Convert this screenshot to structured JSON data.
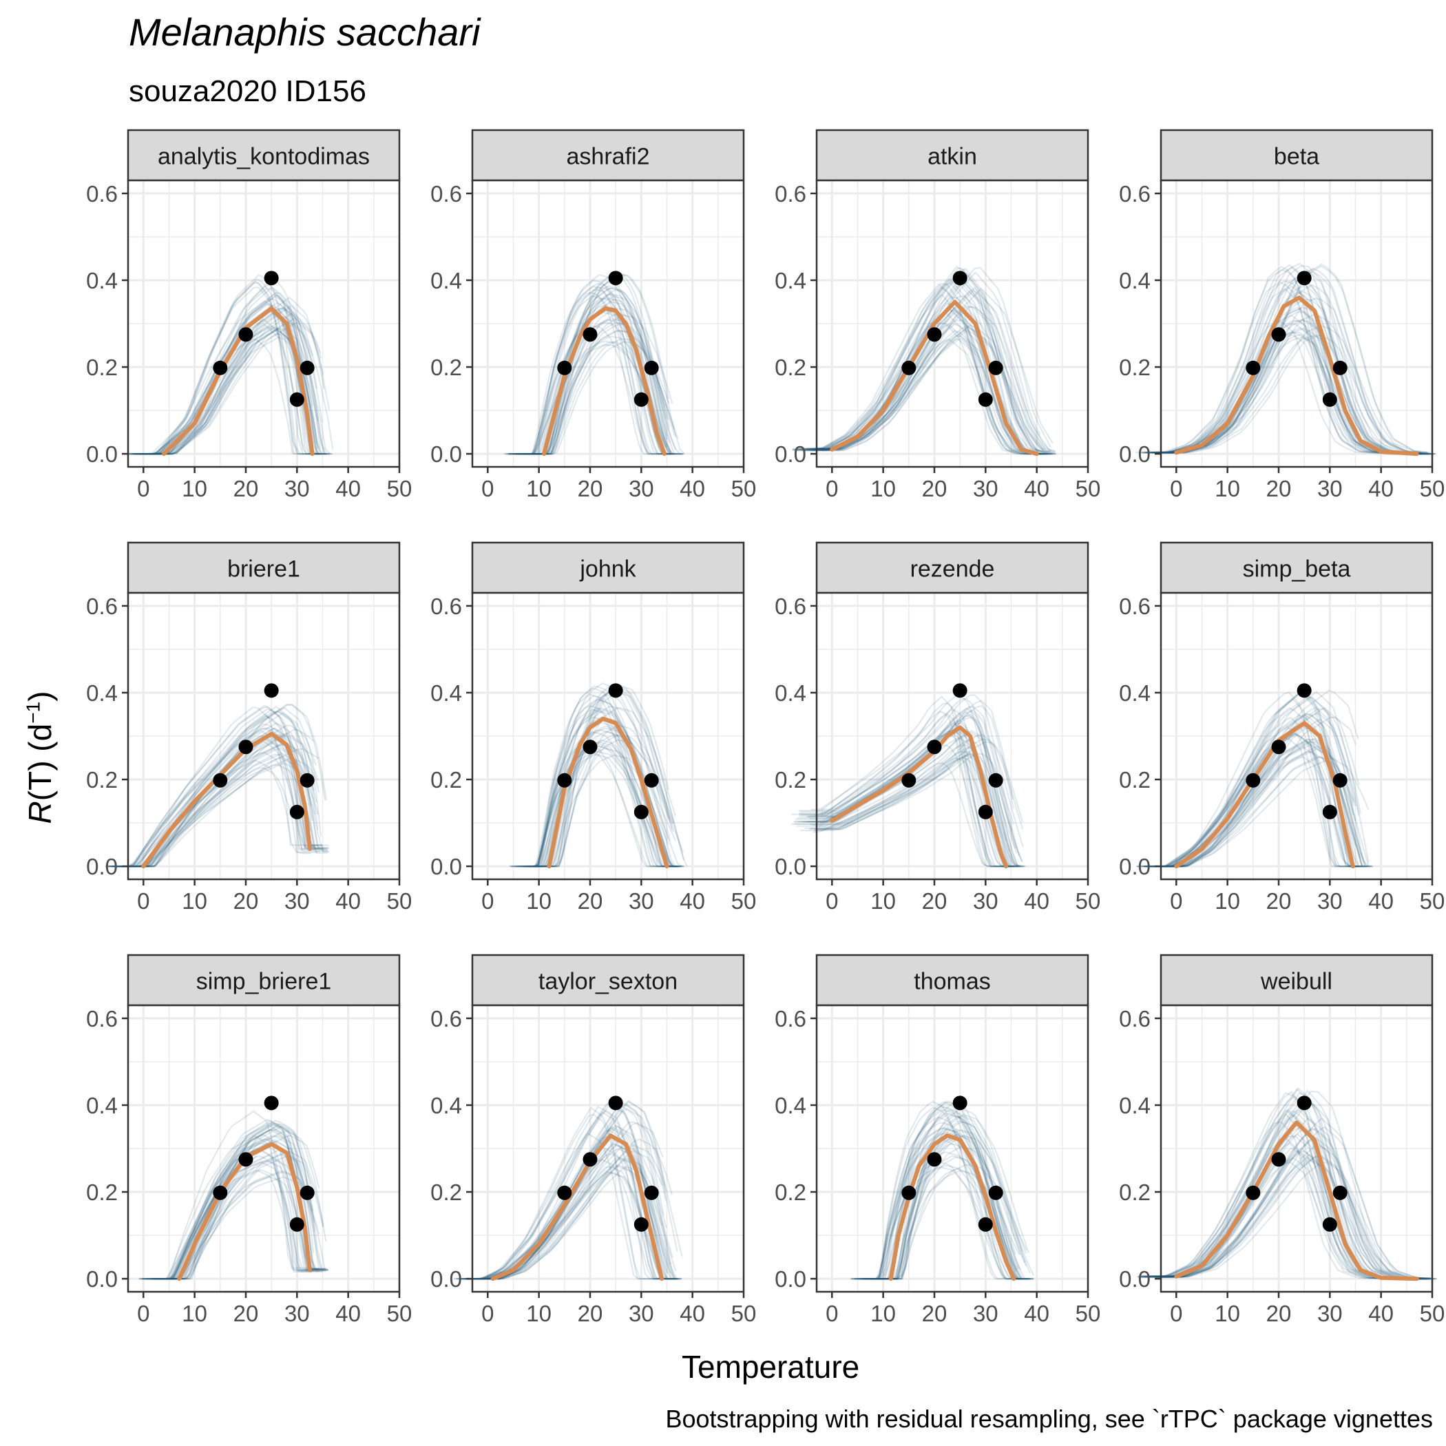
{
  "figure": {
    "title": "Melanaphis sacchari",
    "subtitle": "souza2020 ID156",
    "xlabel": "Temperature",
    "ylabel_symbol": "R",
    "ylabel_rest": "(T) (d",
    "ylabel_sup": "−1",
    "ylabel_close": ")",
    "caption": "Bootstrapping with residual resampling, see `rTPC` package vignettes"
  },
  "colors": {
    "fit_line": "#D98A4E",
    "bootstrap_lines": "#1F5672",
    "points": "#000000",
    "strip_background": "#D9D9D9",
    "panel_border": "#333333",
    "grid": "#EBEBEB"
  },
  "chart_data": {
    "type": "line",
    "facet_layout": {
      "rows": 3,
      "cols": 4
    },
    "x_ticks": [
      0,
      10,
      20,
      30,
      40,
      50
    ],
    "y_ticks": [
      0.0,
      0.2,
      0.4,
      0.6
    ],
    "y_tick_labels": [
      "0.0",
      "0.2",
      "0.4",
      "0.6"
    ],
    "xlim": [
      -3,
      50
    ],
    "ylim": [
      -0.03,
      0.63
    ],
    "grid": true,
    "observed_points": {
      "x": [
        15,
        20,
        25,
        30,
        32
      ],
      "y": [
        0.198,
        0.275,
        0.405,
        0.125,
        0.198
      ]
    },
    "panels": [
      {
        "model": "analytis_kontodimas",
        "fit": {
          "x": [
            4,
            10,
            15,
            20,
            25,
            28,
            30,
            32,
            33
          ],
          "y": [
            0.0,
            0.07,
            0.19,
            0.29,
            0.335,
            0.3,
            0.22,
            0.09,
            0.0
          ]
        }
      },
      {
        "model": "ashrafi2",
        "fit": {
          "x": [
            11,
            13,
            15,
            18,
            20,
            23,
            25,
            27,
            29,
            31,
            33,
            34.5
          ],
          "y": [
            0.0,
            0.09,
            0.18,
            0.27,
            0.31,
            0.335,
            0.33,
            0.3,
            0.24,
            0.15,
            0.05,
            0.0
          ]
        }
      },
      {
        "model": "atkin",
        "fit": {
          "x": [
            0,
            5,
            10,
            15,
            20,
            24,
            28,
            31,
            34,
            37,
            40
          ],
          "y": [
            0.01,
            0.04,
            0.1,
            0.2,
            0.3,
            0.35,
            0.3,
            0.19,
            0.07,
            0.01,
            0.0
          ]
        }
      },
      {
        "model": "beta",
        "fit": {
          "x": [
            0,
            5,
            10,
            15,
            18,
            21,
            24,
            27,
            30,
            33,
            36,
            40,
            47
          ],
          "y": [
            0.003,
            0.02,
            0.07,
            0.18,
            0.27,
            0.34,
            0.36,
            0.33,
            0.22,
            0.1,
            0.03,
            0.005,
            0.0
          ]
        }
      },
      {
        "model": "briere1",
        "fit": {
          "x": [
            0,
            5,
            10,
            15,
            20,
            25,
            28,
            30,
            31.5,
            32.5
          ],
          "y": [
            0.0,
            0.08,
            0.15,
            0.21,
            0.27,
            0.305,
            0.28,
            0.22,
            0.14,
            0.04
          ]
        }
      },
      {
        "model": "johnk",
        "fit": {
          "x": [
            12,
            13.5,
            15,
            18,
            20,
            22.5,
            25,
            28,
            30,
            32,
            34,
            35
          ],
          "y": [
            0.0,
            0.09,
            0.18,
            0.28,
            0.32,
            0.34,
            0.33,
            0.27,
            0.2,
            0.12,
            0.04,
            0.0
          ]
        }
      },
      {
        "model": "rezende",
        "fit": {
          "x": [
            0,
            5,
            10,
            15,
            20,
            22.5,
            25,
            27,
            29,
            31,
            33,
            34
          ],
          "y": [
            0.105,
            0.14,
            0.175,
            0.215,
            0.265,
            0.3,
            0.32,
            0.3,
            0.22,
            0.12,
            0.03,
            0.0
          ]
        }
      },
      {
        "model": "simp_beta",
        "fit": {
          "x": [
            0,
            5,
            10,
            15,
            20,
            25,
            28,
            31,
            33,
            34.5
          ],
          "y": [
            0.0,
            0.04,
            0.11,
            0.2,
            0.29,
            0.33,
            0.3,
            0.19,
            0.08,
            0.0
          ]
        }
      },
      {
        "model": "simp_briere1",
        "fit": {
          "x": [
            7,
            10,
            15,
            20,
            25,
            28,
            30,
            31.5,
            32.5
          ],
          "y": [
            0.0,
            0.08,
            0.2,
            0.28,
            0.31,
            0.29,
            0.21,
            0.12,
            0.02
          ]
        }
      },
      {
        "model": "taylor_sexton",
        "fit": {
          "x": [
            1,
            5,
            10,
            15,
            20,
            24,
            27,
            29,
            31,
            33,
            34
          ],
          "y": [
            0.0,
            0.02,
            0.08,
            0.17,
            0.27,
            0.33,
            0.31,
            0.25,
            0.15,
            0.05,
            0.0
          ]
        }
      },
      {
        "model": "thomas",
        "fit": {
          "x": [
            11.5,
            13,
            15,
            17,
            20,
            22.5,
            25,
            28,
            30,
            32,
            34,
            35.5
          ],
          "y": [
            0.0,
            0.1,
            0.19,
            0.26,
            0.31,
            0.33,
            0.32,
            0.26,
            0.19,
            0.11,
            0.04,
            0.0
          ]
        }
      },
      {
        "model": "weibull",
        "fit": {
          "x": [
            0,
            5,
            10,
            15,
            20,
            23.5,
            27,
            30,
            33,
            36,
            40,
            47
          ],
          "y": [
            0.005,
            0.03,
            0.1,
            0.2,
            0.31,
            0.36,
            0.32,
            0.2,
            0.08,
            0.02,
            0.002,
            0.0
          ]
        }
      }
    ]
  }
}
